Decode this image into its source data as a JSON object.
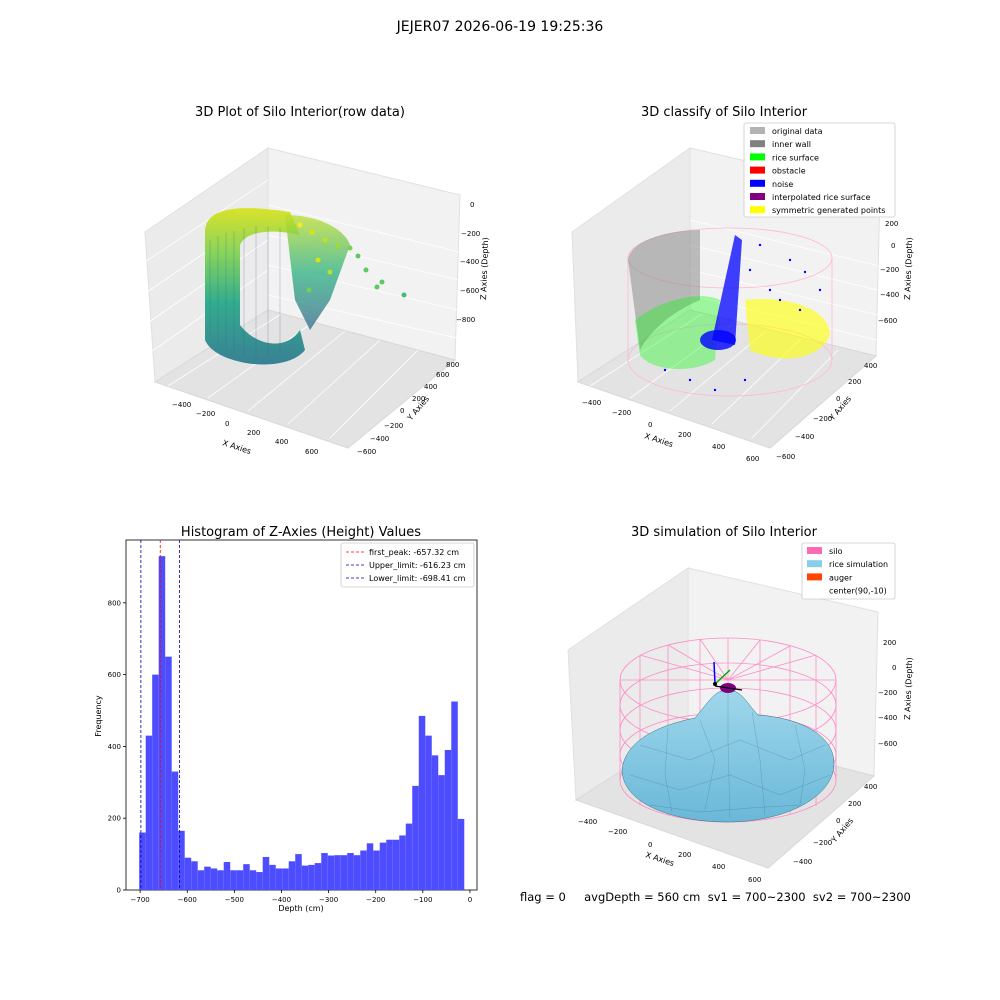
{
  "figure": {
    "suptitle": "JEJER07 2026-06-19 19:25:36",
    "status_line": "flag = 0     avgDepth = 560 cm  sv1 = 700~2300  sv2 = 700~2300"
  },
  "chart_data": [
    {
      "type": "scatter",
      "title": "3D Plot of Silo Interior(row data)",
      "xlabel": "X Axies",
      "ylabel": "Y Axies",
      "zlabel": "Z Axies (Depth)",
      "x_ticks": [
        "−400",
        "−200",
        "0",
        "200",
        "400",
        "600"
      ],
      "y_ticks": [
        "−600",
        "−400",
        "−200",
        "0",
        "200",
        "400",
        "600",
        "800"
      ],
      "z_ticks": [
        "−800",
        "−600",
        "−400",
        "−200",
        "0"
      ],
      "colormap": "viridis",
      "shape": "open half-cylinder of wall points, rim near Z≈-200, base near Z≈-800",
      "outliers": [
        {
          "z": -550
        },
        {
          "z": -650
        }
      ]
    },
    {
      "type": "scatter",
      "title": "3D classify of Silo Interior",
      "xlabel": "X Axies",
      "ylabel": "Y Axies",
      "zlabel": "Z Axies (Depth)",
      "x_ticks": [
        "−400",
        "−200",
        "0",
        "200",
        "400",
        "600"
      ],
      "y_ticks": [
        "−600",
        "−400",
        "−200",
        "0",
        "200",
        "400"
      ],
      "z_ticks": [
        "−600",
        "−400",
        "−200",
        "0",
        "200"
      ],
      "legend_position": "top-right",
      "legend": [
        {
          "label": "original data",
          "color": "#b3b3b3"
        },
        {
          "label": "inner wall",
          "color": "#808080"
        },
        {
          "label": "rice surface",
          "color": "#00ff00"
        },
        {
          "label": "obstacle",
          "color": "#ff0000"
        },
        {
          "label": "noise",
          "color": "#0000ff"
        },
        {
          "label": "interpolated rice surface",
          "color": "#800080"
        },
        {
          "label": "symmetric generated points",
          "color": "#ffff00"
        }
      ]
    },
    {
      "type": "bar",
      "title": "Histogram of Z-Axies (Height) Values",
      "xlabel": "Depth (cm)",
      "ylabel": "Frequency",
      "xlim": [
        -730,
        15
      ],
      "ylim": [
        0,
        975
      ],
      "x_ticks": [
        -700,
        -600,
        -500,
        -400,
        -300,
        -200,
        -100,
        0
      ],
      "x_tick_labels": [
        "−700",
        "−600",
        "−500",
        "−400",
        "−300",
        "−200",
        "−100",
        "0"
      ],
      "y_ticks": [
        0,
        200,
        400,
        600,
        800
      ],
      "y_tick_labels": [
        "0",
        "200",
        "400",
        "600",
        "800"
      ],
      "bar_color": "#4d4dff",
      "bin_start": -702,
      "bin_width": 13.8,
      "values": [
        160,
        430,
        600,
        930,
        650,
        330,
        165,
        90,
        80,
        55,
        65,
        60,
        55,
        78,
        55,
        55,
        72,
        55,
        50,
        92,
        70,
        60,
        60,
        80,
        100,
        68,
        70,
        75,
        103,
        96,
        97,
        97,
        103,
        97,
        110,
        130,
        110,
        132,
        140,
        140,
        152,
        185,
        290,
        485,
        430,
        375,
        320,
        390,
        525,
        198
      ],
      "legend_position": "top-right",
      "lines": [
        {
          "label": "first_peak: -657.32 cm",
          "x": -657.32,
          "color": "#ff0000"
        },
        {
          "label": "Upper_limit: -616.23 cm",
          "x": -616.23,
          "color": "#0000aa"
        },
        {
          "label": "Lower_limit: -698.41 cm",
          "x": -698.41,
          "color": "#0000aa"
        }
      ]
    },
    {
      "type": "surface",
      "title": "3D simulation of Silo Interior",
      "xlabel": "X Axies",
      "ylabel": "Y Axies",
      "zlabel": "Z Axies (Depth)",
      "x_ticks": [
        "−400",
        "−200",
        "0",
        "200",
        "400",
        "600"
      ],
      "y_ticks": [
        "−400",
        "−200",
        "0",
        "200",
        "400"
      ],
      "z_ticks": [
        "−600",
        "−400",
        "−200",
        "0",
        "200"
      ],
      "legend_position": "top-right",
      "legend": [
        {
          "label": "silo",
          "color": "#ff69b4"
        },
        {
          "label": "rice simulation",
          "color": "#87ceeb"
        },
        {
          "label": "auger",
          "color": "#ff4500"
        },
        {
          "label": "center(90,-10)",
          "color": ""
        }
      ]
    }
  ]
}
